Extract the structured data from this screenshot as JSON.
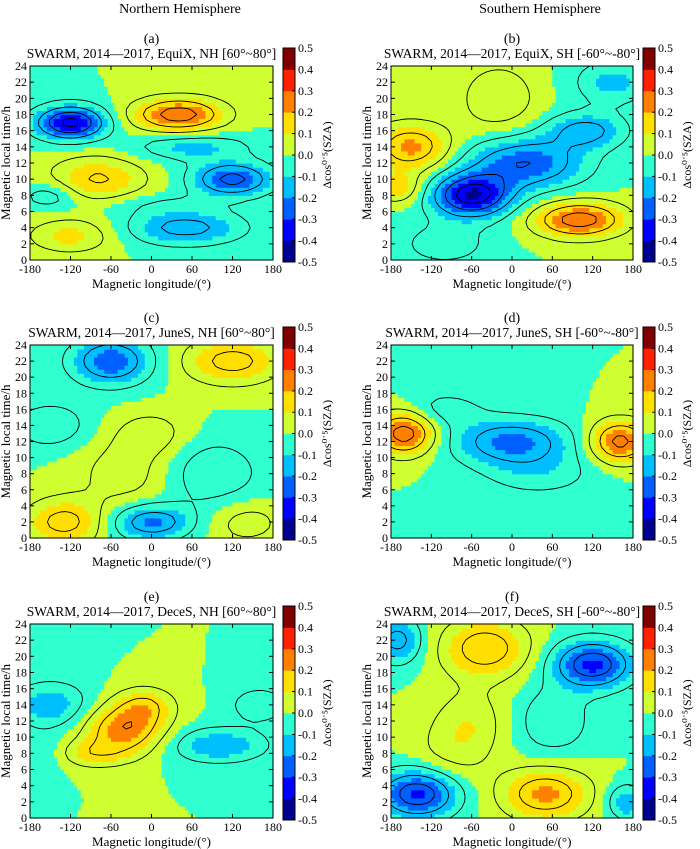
{
  "headers": {
    "north": "Northern Hemisphere",
    "south": "Southern Hemisphere"
  },
  "colors": {
    "axis": "#000000",
    "contour_line": "#000000",
    "colormap": [
      "#00008f",
      "#0000ff",
      "#0060ff",
      "#00bfff",
      "#30ffcf",
      "#80ff80",
      "#cfff30",
      "#ffdf00",
      "#ff8000",
      "#ff2000",
      "#800000"
    ]
  },
  "chart_data": [
    {
      "type": "heatmap",
      "letter": "(a)",
      "title": "SWARM, 2014—2017, EquiX, NH [60°~80°]",
      "xlabel": "Magnetic longitude/(°)",
      "ylabel": "Magnetic local time/h",
      "colorbar_label": "Δcos⁰˙⁵(SZA)",
      "xlim": [
        -180,
        180
      ],
      "ylim": [
        0,
        24
      ],
      "clim": [
        -0.5,
        0.5
      ],
      "xticks": [
        -180,
        -120,
        -60,
        0,
        60,
        120,
        180
      ],
      "xtick_labels": [
        "-180",
        "-120",
        "-60",
        "0",
        "60",
        "120",
        "180"
      ],
      "yticks": [
        0,
        2,
        4,
        6,
        8,
        10,
        12,
        14,
        16,
        18,
        20,
        22,
        24
      ],
      "ytick_labels": [
        "0",
        "2",
        "4",
        "6",
        "8",
        "10",
        "12",
        "14",
        "16",
        "18",
        "20",
        "22",
        "24"
      ],
      "cticks": [
        -0.5,
        -0.4,
        -0.3,
        -0.2,
        -0.1,
        0,
        0.1,
        0.2,
        0.3,
        0.4,
        0.5
      ],
      "ctick_labels": [
        "-0.5",
        "-0.4",
        "-0.3",
        "-0.2",
        "-0.1",
        "0.0",
        "0.1",
        "0.2",
        "0.3",
        "0.4",
        "0.5"
      ],
      "features": [
        {
          "lon": -120,
          "mlt": 17,
          "sx": 35,
          "sy": 1.4,
          "amp": -0.38
        },
        {
          "lon": 40,
          "mlt": 18,
          "sx": 45,
          "sy": 1.4,
          "amp": 0.3
        },
        {
          "lon": -80,
          "mlt": 10,
          "sx": 50,
          "sy": 2,
          "amp": 0.16
        },
        {
          "lon": 120,
          "mlt": 10,
          "sx": 40,
          "sy": 1.4,
          "amp": -0.28
        },
        {
          "lon": -150,
          "mlt": 8,
          "sx": 30,
          "sy": 1.2,
          "amp": -0.1
        },
        {
          "lon": -120,
          "mlt": 3,
          "sx": 45,
          "sy": 1.5,
          "amp": 0.12
        },
        {
          "lon": 50,
          "mlt": 4,
          "sx": 60,
          "sy": 1.5,
          "amp": -0.18
        },
        {
          "lon": 60,
          "mlt": 14,
          "sx": 60,
          "sy": 1.2,
          "amp": -0.12
        },
        {
          "lon": 0,
          "mlt": 7,
          "sx": 70,
          "sy": 1,
          "amp": -0.05
        }
      ]
    },
    {
      "type": "heatmap",
      "letter": "(b)",
      "title": "SWARM, 2014—2017, EquiX, SH [-60°~-80°]",
      "xlabel": "Magnetic longitude/(°)",
      "ylabel": "Magnetic local time/h",
      "colorbar_label": "Δcos⁰˙⁵(SZA)",
      "xlim": [
        -180,
        180
      ],
      "ylim": [
        0,
        24
      ],
      "clim": [
        -0.5,
        0.5
      ],
      "xticks": [
        -180,
        -120,
        -60,
        0,
        60,
        120,
        180
      ],
      "xtick_labels": [
        "-180",
        "-120",
        "-60",
        "0",
        "60",
        "120",
        "180"
      ],
      "yticks": [
        0,
        2,
        4,
        6,
        8,
        10,
        12,
        14,
        16,
        18,
        20,
        22,
        24
      ],
      "ytick_labels": [
        "0",
        "2",
        "4",
        "6",
        "8",
        "10",
        "12",
        "14",
        "16",
        "18",
        "20",
        "22",
        "24"
      ],
      "cticks": [
        -0.5,
        -0.4,
        -0.3,
        -0.2,
        -0.1,
        0,
        0.1,
        0.2,
        0.3,
        0.4,
        0.5
      ],
      "ctick_labels": [
        "-0.5",
        "-0.4",
        "-0.3",
        "-0.2",
        "-0.1",
        "0.0",
        "0.1",
        "0.2",
        "0.3",
        "0.4",
        "0.5"
      ],
      "features": [
        {
          "lon": -60,
          "mlt": 8,
          "sx": 40,
          "sy": 1.8,
          "amp": -0.4
        },
        {
          "lon": 20,
          "mlt": 12,
          "sx": 60,
          "sy": 2.2,
          "amp": -0.25
        },
        {
          "lon": 110,
          "mlt": 16,
          "sx": 40,
          "sy": 1.5,
          "amp": -0.18
        },
        {
          "lon": 100,
          "mlt": 5,
          "sx": 45,
          "sy": 1.5,
          "amp": 0.3
        },
        {
          "lon": -150,
          "mlt": 14,
          "sx": 40,
          "sy": 2,
          "amp": 0.22
        },
        {
          "lon": -170,
          "mlt": 9,
          "sx": 25,
          "sy": 1.3,
          "amp": 0.14
        },
        {
          "lon": -20,
          "mlt": 20,
          "sx": 40,
          "sy": 3,
          "amp": 0.1
        },
        {
          "lon": 150,
          "mlt": 22,
          "sx": 40,
          "sy": 2,
          "amp": -0.12
        },
        {
          "lon": -100,
          "mlt": 2,
          "sx": 50,
          "sy": 2,
          "amp": -0.08
        }
      ]
    },
    {
      "type": "heatmap",
      "letter": "(c)",
      "title": "SWARM, 2014—2017, JuneS, NH [60°~80°]",
      "xlabel": "Magnetic longitude/(°)",
      "ylabel": "Magnetic local time/h",
      "colorbar_label": "Δcos⁰˙⁵(SZA)",
      "xlim": [
        -180,
        180
      ],
      "ylim": [
        0,
        24
      ],
      "clim": [
        -0.5,
        0.5
      ],
      "xticks": [
        -180,
        -120,
        -60,
        0,
        60,
        120,
        180
      ],
      "xtick_labels": [
        "-180",
        "-120",
        "-60",
        "0",
        "60",
        "120",
        "180"
      ],
      "yticks": [
        0,
        2,
        4,
        6,
        8,
        10,
        12,
        14,
        16,
        18,
        20,
        22,
        24
      ],
      "ytick_labels": [
        "0",
        "2",
        "4",
        "6",
        "8",
        "10",
        "12",
        "14",
        "16",
        "18",
        "20",
        "22",
        "24"
      ],
      "cticks": [
        -0.5,
        -0.4,
        -0.3,
        -0.2,
        -0.1,
        0,
        0.1,
        0.2,
        0.3,
        0.4,
        0.5
      ],
      "ctick_labels": [
        "-0.5",
        "-0.4",
        "-0.3",
        "-0.2",
        "-0.1",
        "0.0",
        "0.1",
        "0.2",
        "0.3",
        "0.4",
        "0.5"
      ],
      "features": [
        {
          "lon": -60,
          "mlt": 22,
          "sx": 40,
          "sy": 2,
          "amp": -0.25
        },
        {
          "lon": 120,
          "mlt": 22,
          "sx": 50,
          "sy": 2,
          "amp": 0.18
        },
        {
          "lon": -130,
          "mlt": 2,
          "sx": 40,
          "sy": 2,
          "amp": 0.18
        },
        {
          "lon": 0,
          "mlt": 2,
          "sx": 40,
          "sy": 1.5,
          "amp": -0.22
        },
        {
          "lon": -40,
          "mlt": 8,
          "sx": 50,
          "sy": 3,
          "amp": 0.08
        },
        {
          "lon": 0,
          "mlt": 13,
          "sx": 40,
          "sy": 2,
          "amp": 0.08
        },
        {
          "lon": 90,
          "mlt": 8,
          "sx": 50,
          "sy": 3,
          "amp": -0.1
        },
        {
          "lon": -150,
          "mlt": 14,
          "sx": 40,
          "sy": 2,
          "amp": -0.1
        },
        {
          "lon": 140,
          "mlt": 2,
          "sx": 40,
          "sy": 2,
          "amp": 0.08
        }
      ]
    },
    {
      "type": "heatmap",
      "letter": "(d)",
      "title": "SWARM, 2014—2017, JuneS, SH [-60°~-80°]",
      "xlabel": "Magnetic longitude/(°)",
      "ylabel": "Magnetic local time/h",
      "colorbar_label": "Δcos⁰˙⁵(SZA)",
      "xlim": [
        -180,
        180
      ],
      "ylim": [
        0,
        24
      ],
      "clim": [
        -0.5,
        0.5
      ],
      "xticks": [
        -180,
        -120,
        -60,
        0,
        60,
        120,
        180
      ],
      "xtick_labels": [
        "-180",
        "-120",
        "-60",
        "0",
        "60",
        "120",
        "180"
      ],
      "yticks": [
        0,
        2,
        4,
        6,
        8,
        10,
        12,
        14,
        16,
        18,
        20,
        22,
        24
      ],
      "ytick_labels": [
        "0",
        "2",
        "4",
        "6",
        "8",
        "10",
        "12",
        "14",
        "16",
        "18",
        "20",
        "22",
        "24"
      ],
      "cticks": [
        -0.5,
        -0.4,
        -0.3,
        -0.2,
        -0.1,
        0,
        0.1,
        0.2,
        0.3,
        0.4,
        0.5
      ],
      "ctick_labels": [
        "-0.5",
        "-0.4",
        "-0.3",
        "-0.2",
        "-0.1",
        "0.0",
        "0.1",
        "0.2",
        "0.3",
        "0.4",
        "0.5"
      ],
      "features": [
        {
          "lon": -160,
          "mlt": 13,
          "sx": 30,
          "sy": 1.8,
          "amp": 0.3
        },
        {
          "lon": 160,
          "mlt": 12,
          "sx": 30,
          "sy": 1.8,
          "amp": 0.28
        },
        {
          "lon": 0,
          "mlt": 12,
          "sx": 60,
          "sy": 2,
          "amp": -0.22
        },
        {
          "lon": 40,
          "mlt": 8,
          "sx": 60,
          "sy": 2,
          "amp": -0.08
        },
        {
          "lon": -100,
          "mlt": 16,
          "sx": 40,
          "sy": 1.5,
          "amp": -0.08
        },
        {
          "lon": 0,
          "mlt": 2,
          "sx": 120,
          "sy": 1.2,
          "amp": -0.04
        }
      ]
    },
    {
      "type": "heatmap",
      "letter": "(e)",
      "title": "SWARM, 2014—2017, DeceS, NH [60°~80°]",
      "xlabel": "Magnetic longitude/(°)",
      "ylabel": "Magnetic local time/h",
      "colorbar_label": "Δcos⁰˙⁵(SZA)",
      "xlim": [
        -180,
        180
      ],
      "ylim": [
        0,
        24
      ],
      "clim": [
        -0.5,
        0.5
      ],
      "xticks": [
        -180,
        -120,
        -60,
        0,
        60,
        120,
        180
      ],
      "xtick_labels": [
        "-180",
        "-120",
        "-60",
        "0",
        "60",
        "120",
        "180"
      ],
      "yticks": [
        0,
        2,
        4,
        6,
        8,
        10,
        12,
        14,
        16,
        18,
        20,
        22,
        24
      ],
      "ytick_labels": [
        "0",
        "2",
        "4",
        "6",
        "8",
        "10",
        "12",
        "14",
        "16",
        "18",
        "20",
        "22",
        "24"
      ],
      "cticks": [
        -0.5,
        -0.4,
        -0.3,
        -0.2,
        -0.1,
        0,
        0.1,
        0.2,
        0.3,
        0.4,
        0.5
      ],
      "ctick_labels": [
        "-0.5",
        "-0.4",
        "-0.3",
        "-0.2",
        "-0.1",
        "0.0",
        "0.1",
        "0.2",
        "0.3",
        "0.4",
        "0.5"
      ],
      "features": [
        {
          "lon": -40,
          "mlt": 11,
          "sx": 40,
          "sy": 2,
          "amp": 0.24
        },
        {
          "lon": -90,
          "mlt": 8,
          "sx": 40,
          "sy": 1.2,
          "amp": 0.12
        },
        {
          "lon": -10,
          "mlt": 14,
          "sx": 30,
          "sy": 1.5,
          "amp": 0.14
        },
        {
          "lon": 100,
          "mlt": 9,
          "sx": 50,
          "sy": 1.5,
          "amp": -0.15
        },
        {
          "lon": -150,
          "mlt": 14,
          "sx": 40,
          "sy": 2,
          "amp": -0.14
        },
        {
          "lon": -160,
          "mlt": 8,
          "sx": 30,
          "sy": 1.5,
          "amp": -0.06
        },
        {
          "lon": 160,
          "mlt": 14,
          "sx": 30,
          "sy": 1.5,
          "amp": -0.1
        }
      ]
    },
    {
      "type": "heatmap",
      "letter": "(f)",
      "title": "SWARM, 2014—2017, DeceS, SH [-60°~-80°]",
      "xlabel": "Magnetic longitude/(°)",
      "ylabel": "Magnetic local time/h",
      "colorbar_label": "Δcos⁰˙⁵(SZA)",
      "xlim": [
        -180,
        180
      ],
      "ylim": [
        0,
        24
      ],
      "clim": [
        -0.5,
        0.5
      ],
      "xticks": [
        -180,
        -120,
        -60,
        0,
        60,
        120,
        180
      ],
      "xtick_labels": [
        "-180",
        "-120",
        "-60",
        "0",
        "60",
        "120",
        "180"
      ],
      "yticks": [
        0,
        2,
        4,
        6,
        8,
        10,
        12,
        14,
        16,
        18,
        20,
        22,
        24
      ],
      "ytick_labels": [
        "0",
        "2",
        "4",
        "6",
        "8",
        "10",
        "12",
        "14",
        "16",
        "18",
        "20",
        "22",
        "24"
      ],
      "cticks": [
        -0.5,
        -0.4,
        -0.3,
        -0.2,
        -0.1,
        0,
        0.1,
        0.2,
        0.3,
        0.4,
        0.5
      ],
      "ctick_labels": [
        "-0.5",
        "-0.4",
        "-0.3",
        "-0.2",
        "-0.1",
        "0.0",
        "0.1",
        "0.2",
        "0.3",
        "0.4",
        "0.5"
      ],
      "features": [
        {
          "lon": -40,
          "mlt": 21,
          "sx": 45,
          "sy": 2.5,
          "amp": 0.2
        },
        {
          "lon": 120,
          "mlt": 19,
          "sx": 40,
          "sy": 2,
          "amp": -0.32
        },
        {
          "lon": -140,
          "mlt": 3,
          "sx": 40,
          "sy": 2,
          "amp": -0.32
        },
        {
          "lon": 50,
          "mlt": 3,
          "sx": 45,
          "sy": 2.2,
          "amp": 0.22
        },
        {
          "lon": -170,
          "mlt": 22,
          "sx": 25,
          "sy": 2,
          "amp": -0.18
        },
        {
          "lon": 60,
          "mlt": 12,
          "sx": 40,
          "sy": 3,
          "amp": -0.1
        },
        {
          "lon": -60,
          "mlt": 12,
          "sx": 40,
          "sy": 3,
          "amp": 0.08
        },
        {
          "lon": -90,
          "mlt": 8,
          "sx": 40,
          "sy": 3,
          "amp": 0.06
        },
        {
          "lon": 170,
          "mlt": 2,
          "sx": 20,
          "sy": 1.5,
          "amp": -0.15
        }
      ]
    }
  ]
}
